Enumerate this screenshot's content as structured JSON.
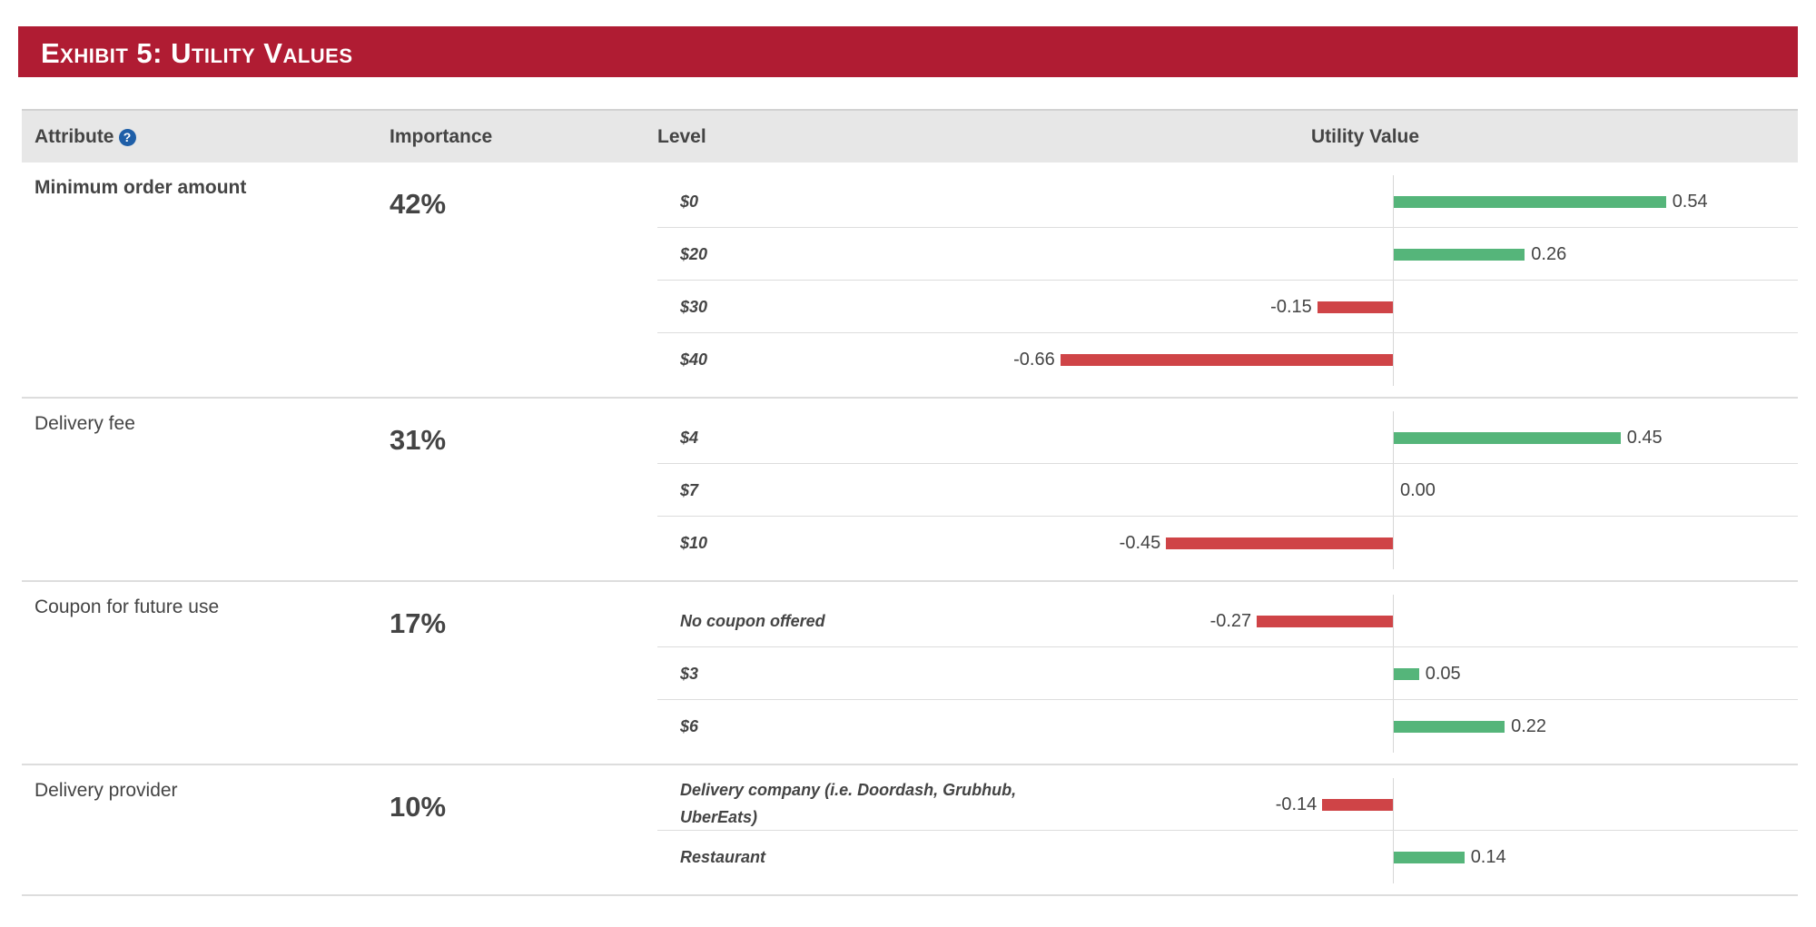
{
  "exhibit_title": "Exhibit 5: Utility Values",
  "colors": {
    "banner": "#b01c33",
    "positive": "#55b57a",
    "negative": "#cf4447",
    "header_bg": "#e7e7e7"
  },
  "table": {
    "columns": {
      "attribute": "Attribute",
      "importance": "Importance",
      "level": "Level",
      "utility": "Utility Value"
    },
    "help_icon": "question-circle-icon"
  },
  "chart_data": {
    "type": "bar",
    "orientation": "horizontal",
    "title": "Exhibit 5: Utility Values",
    "value_label": "Utility Value",
    "xlim": [
      -0.66,
      0.54
    ],
    "groups": [
      {
        "attribute": "Minimum order amount",
        "importance": "42%",
        "levels": [
          {
            "label": "$0",
            "value": 0.54,
            "display": "0.54"
          },
          {
            "label": "$20",
            "value": 0.26,
            "display": "0.26"
          },
          {
            "label": "$30",
            "value": -0.15,
            "display": "-0.15"
          },
          {
            "label": "$40",
            "value": -0.66,
            "display": "-0.66"
          }
        ]
      },
      {
        "attribute": "Delivery fee",
        "importance": "31%",
        "levels": [
          {
            "label": "$4",
            "value": 0.45,
            "display": "0.45"
          },
          {
            "label": "$7",
            "value": 0.0,
            "display": "0.00"
          },
          {
            "label": "$10",
            "value": -0.45,
            "display": "-0.45"
          }
        ]
      },
      {
        "attribute": "Coupon for future use",
        "importance": "17%",
        "levels": [
          {
            "label": "No coupon offered",
            "value": -0.27,
            "display": "-0.27"
          },
          {
            "label": "$3",
            "value": 0.05,
            "display": "0.05"
          },
          {
            "label": "$6",
            "value": 0.22,
            "display": "0.22"
          }
        ]
      },
      {
        "attribute": "Delivery provider",
        "importance": "10%",
        "levels": [
          {
            "label": "Delivery company (i.e. Doordash, Grubhub, UberEats)",
            "value": -0.14,
            "display": "-0.14"
          },
          {
            "label": "Restaurant",
            "value": 0.14,
            "display": "0.14"
          }
        ]
      }
    ]
  }
}
